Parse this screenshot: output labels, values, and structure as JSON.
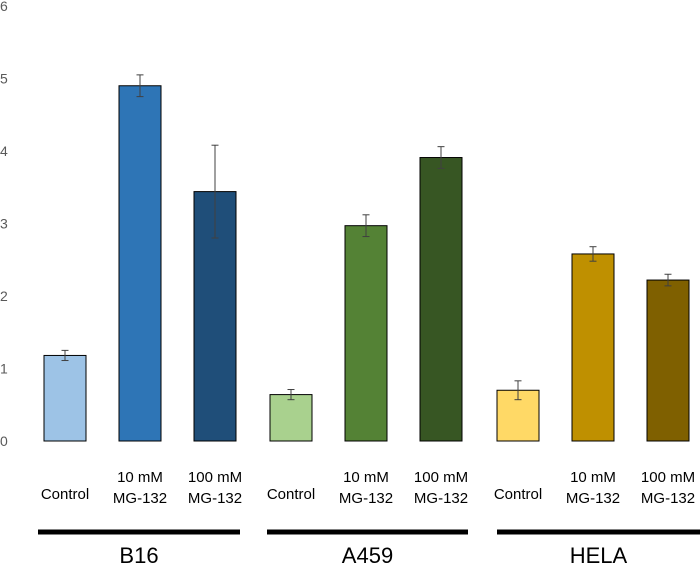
{
  "chart_data": {
    "type": "bar",
    "title": "",
    "xlabel": "",
    "ylabel": "",
    "ylim": [
      0,
      6
    ],
    "yticks": [
      "0",
      "1",
      "2",
      "3",
      "4",
      "5",
      "6"
    ],
    "grid": false,
    "legend": "none",
    "groups": [
      {
        "name": "B16",
        "bars": [
          {
            "label_lines": [
              "Control"
            ],
            "value": 1.18,
            "error": 0.07,
            "color": "#9DC3E6"
          },
          {
            "label_lines": [
              "10 mM",
              "MG-132"
            ],
            "value": 4.9,
            "error": 0.15,
            "color": "#2E75B6"
          },
          {
            "label_lines": [
              "100 mM",
              "MG-132"
            ],
            "value": 3.44,
            "error": 0.64,
            "color": "#1F4E79"
          }
        ]
      },
      {
        "name": "A459",
        "bars": [
          {
            "label_lines": [
              "Control"
            ],
            "value": 0.64,
            "error": 0.07,
            "color": "#A9D18E"
          },
          {
            "label_lines": [
              "10 mM",
              "MG-132"
            ],
            "value": 2.97,
            "error": 0.15,
            "color": "#548235"
          },
          {
            "label_lines": [
              "100 mM",
              "MG-132"
            ],
            "value": 3.91,
            "error": 0.15,
            "color": "#375623"
          }
        ]
      },
      {
        "name": "HELA",
        "bars": [
          {
            "label_lines": [
              "Control"
            ],
            "value": 0.7,
            "error": 0.13,
            "color": "#FFD966"
          },
          {
            "label_lines": [
              "10 mM",
              "MG-132"
            ],
            "value": 2.58,
            "error": 0.1,
            "color": "#BF9000"
          },
          {
            "label_lines": [
              "100 mM",
              "MG-132"
            ],
            "value": 2.22,
            "error": 0.08,
            "color": "#7F6000"
          }
        ]
      }
    ]
  }
}
